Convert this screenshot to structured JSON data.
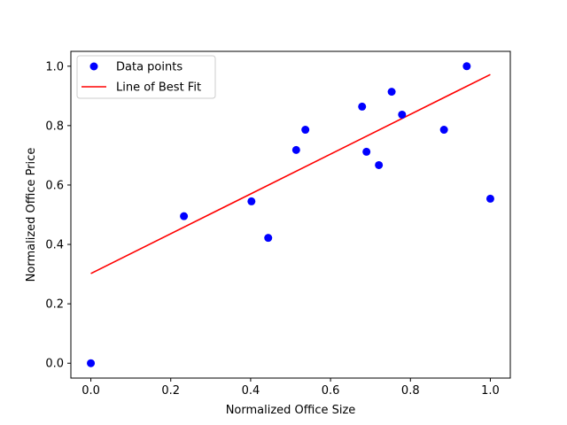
{
  "chart_data": {
    "type": "scatter",
    "title": "",
    "xlabel": "Normalized Office Size",
    "ylabel": "Normalized Office Price",
    "xlim": [
      -0.05,
      1.05
    ],
    "ylim": [
      -0.05,
      1.05
    ],
    "xticks": [
      0.0,
      0.2,
      0.4,
      0.6,
      0.8,
      1.0
    ],
    "yticks": [
      0.0,
      0.2,
      0.4,
      0.6,
      0.8,
      1.0
    ],
    "xtick_labels": [
      "0.0",
      "0.2",
      "0.4",
      "0.6",
      "0.8",
      "1.0"
    ],
    "ytick_labels": [
      "0.0",
      "0.2",
      "0.4",
      "0.6",
      "0.8",
      "1.0"
    ],
    "grid": false,
    "legend_position": "top-left",
    "series": [
      {
        "name": "Data points",
        "kind": "scatter",
        "color": "#0000ff",
        "points": [
          {
            "x": 0.0,
            "y": 0.0
          },
          {
            "x": 0.233,
            "y": 0.495
          },
          {
            "x": 0.402,
            "y": 0.545
          },
          {
            "x": 0.444,
            "y": 0.422
          },
          {
            "x": 0.514,
            "y": 0.718
          },
          {
            "x": 0.537,
            "y": 0.786
          },
          {
            "x": 0.679,
            "y": 0.864
          },
          {
            "x": 0.69,
            "y": 0.712
          },
          {
            "x": 0.721,
            "y": 0.667
          },
          {
            "x": 0.753,
            "y": 0.914
          },
          {
            "x": 0.779,
            "y": 0.837
          },
          {
            "x": 0.884,
            "y": 0.786
          },
          {
            "x": 0.941,
            "y": 1.0
          },
          {
            "x": 1.0,
            "y": 0.554
          }
        ]
      },
      {
        "name": "Line of Best Fit",
        "kind": "line",
        "color": "#ff0000",
        "points": [
          {
            "x": 0.0,
            "y": 0.302
          },
          {
            "x": 1.0,
            "y": 0.972
          }
        ]
      }
    ]
  }
}
